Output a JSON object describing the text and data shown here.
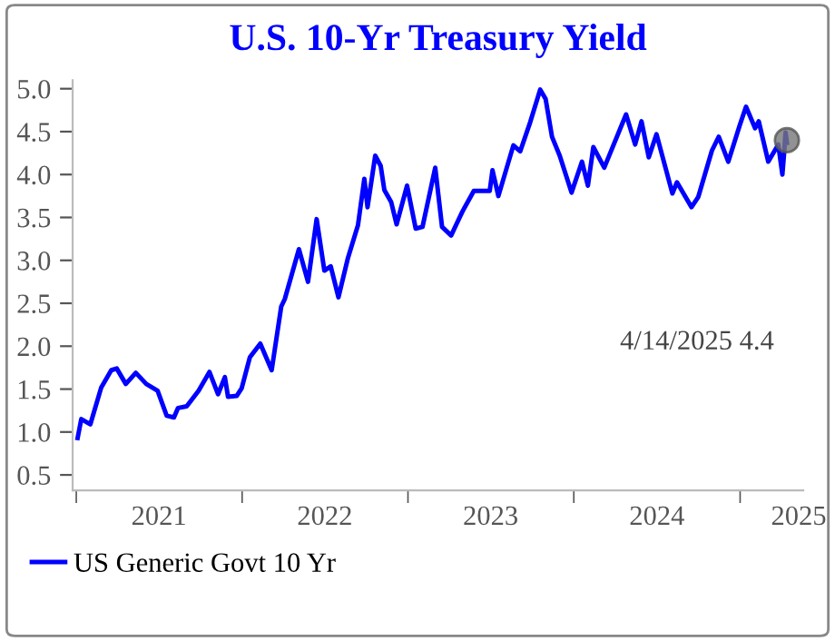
{
  "chart_data": {
    "type": "line",
    "title": "U.S. 10-Yr Treasury Yield",
    "series": [
      {
        "name": "US Generic Govt 10 Yr",
        "color": "#0000ff",
        "x": [
          "2021-01-04",
          "2021-01-12",
          "2021-02-01",
          "2021-02-25",
          "2021-03-19",
          "2021-03-31",
          "2021-04-20",
          "2021-05-12",
          "2021-06-04",
          "2021-06-29",
          "2021-07-19",
          "2021-08-04",
          "2021-08-13",
          "2021-09-01",
          "2021-09-27",
          "2021-10-21",
          "2021-11-09",
          "2021-11-24",
          "2021-12-01",
          "2021-12-20",
          "2021-12-31",
          "2022-01-18",
          "2022-02-10",
          "2022-03-07",
          "2022-03-28",
          "2022-04-05",
          "2022-05-06",
          "2022-05-26",
          "2022-06-14",
          "2022-07-01",
          "2022-07-15",
          "2022-08-01",
          "2022-08-22",
          "2022-09-13",
          "2022-09-27",
          "2022-10-04",
          "2022-10-21",
          "2022-11-02",
          "2022-11-10",
          "2022-11-25",
          "2022-12-07",
          "2022-12-30",
          "2023-01-18",
          "2023-02-02",
          "2023-03-02",
          "2023-03-17",
          "2023-04-06",
          "2023-05-01",
          "2023-05-26",
          "2023-06-30",
          "2023-07-06",
          "2023-07-19",
          "2023-08-21",
          "2023-09-05",
          "2023-09-27",
          "2023-10-19",
          "2023-10-31",
          "2023-11-14",
          "2023-12-01",
          "2023-12-27",
          "2024-01-19",
          "2024-02-01",
          "2024-02-13",
          "2024-03-08",
          "2024-04-25",
          "2024-05-15",
          "2024-05-29",
          "2024-06-14",
          "2024-07-01",
          "2024-08-05",
          "2024-08-15",
          "2024-09-16",
          "2024-10-01",
          "2024-10-31",
          "2024-11-15",
          "2024-12-06",
          "2024-12-31",
          "2025-01-14",
          "2025-02-03",
          "2025-02-11",
          "2025-03-04",
          "2025-03-26",
          "2025-04-04",
          "2025-04-08",
          "2025-04-11",
          "2025-04-14"
        ],
        "marker": "none",
        "values": [
          0.93,
          1.15,
          1.09,
          1.52,
          1.72,
          1.74,
          1.56,
          1.69,
          1.56,
          1.48,
          1.19,
          1.17,
          1.28,
          1.3,
          1.48,
          1.7,
          1.44,
          1.64,
          1.41,
          1.42,
          1.51,
          1.87,
          2.03,
          1.72,
          2.46,
          2.55,
          3.13,
          2.75,
          3.48,
          2.88,
          2.93,
          2.57,
          3.03,
          3.41,
          3.95,
          3.62,
          4.22,
          4.1,
          3.82,
          3.68,
          3.42,
          3.87,
          3.37,
          3.39,
          4.08,
          3.39,
          3.29,
          3.57,
          3.81,
          3.81,
          4.05,
          3.75,
          4.34,
          4.27,
          4.61,
          4.99,
          4.88,
          4.44,
          4.22,
          3.79,
          4.15,
          3.87,
          4.32,
          4.08,
          4.7,
          4.35,
          4.62,
          4.2,
          4.47,
          3.78,
          3.91,
          3.62,
          3.74,
          4.28,
          4.44,
          4.15,
          4.57,
          4.79,
          4.54,
          4.62,
          4.15,
          4.35,
          4.0,
          4.26,
          4.49,
          4.37
        ]
      },
      {
        "type": "scatter",
        "marker": "circle",
        "color": "#777777",
        "x": [
          "2025-04-14"
        ],
        "values": [
          4.4
        ]
      }
    ],
    "ylim": [
      0.32,
      5.1
    ],
    "yticks": [
      0.5,
      {
        "value": 1,
        "label": "1.0"
      },
      1.5,
      {
        "value": 2,
        "label": "2.0"
      },
      2.5,
      {
        "value": 3,
        "label": "3.0"
      },
      3.5,
      {
        "value": 4,
        "label": "4.0"
      },
      4.5,
      {
        "value": 5,
        "label": "5.0"
      }
    ],
    "xlim": [
      "2020-12-24",
      "2025-05-20"
    ],
    "xticks": [
      {
        "value": "2021-01-01",
        "label": null
      },
      {
        "value": "2022-01-01",
        "label": null
      },
      {
        "value": "2023-01-01",
        "label": null
      },
      {
        "value": "2024-01-01",
        "label": null
      },
      {
        "value": "2025-01-01",
        "label": null
      },
      {
        "value": "2021-07-02",
        "label": "2021"
      },
      {
        "value": "2022-07-02",
        "label": "2022"
      },
      {
        "value": "2023-07-02",
        "label": "2023"
      },
      {
        "value": "2024-07-02",
        "label": "2024"
      },
      {
        "value": "2025-05-10",
        "label": "2025"
      }
    ],
    "annotations": [
      "4/14/2025 4.4"
    ],
    "grid": false,
    "legend": "bottom left",
    "line_style": "solid"
  }
}
